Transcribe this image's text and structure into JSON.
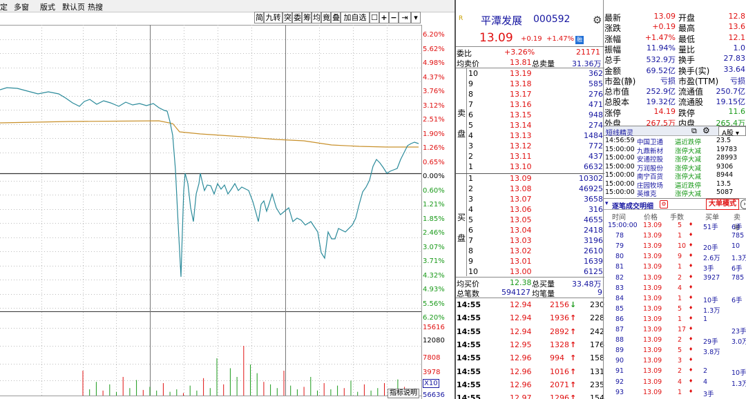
{
  "menu": [
    "定",
    "多窗",
    "版式",
    "默认页",
    "热搜"
  ],
  "toolbar": [
    "简",
    "九转",
    "突",
    "委",
    "筹",
    "均",
    "竟",
    "叠",
    "加自选",
    "☐",
    "+",
    "−",
    "⇥",
    "▾"
  ],
  "pct_labels": [
    {
      "t": "6.20%",
      "c": "red"
    },
    {
      "t": "5.62%",
      "c": "red"
    },
    {
      "t": "4.98%",
      "c": "red"
    },
    {
      "t": "4.37%",
      "c": "red"
    },
    {
      "t": "3.76%",
      "c": "red"
    },
    {
      "t": "3.12%",
      "c": "red"
    },
    {
      "t": "2.51%",
      "c": "red"
    },
    {
      "t": "1.90%",
      "c": "red"
    },
    {
      "t": "1.26%",
      "c": "red"
    },
    {
      "t": "0.65%",
      "c": "red"
    },
    {
      "t": "0.00%",
      "c": "blk"
    },
    {
      "t": "0.60%",
      "c": "grn"
    },
    {
      "t": "1.21%",
      "c": "grn"
    },
    {
      "t": "1.85%",
      "c": "grn"
    },
    {
      "t": "2.46%",
      "c": "grn"
    },
    {
      "t": "3.07%",
      "c": "grn"
    },
    {
      "t": "3.71%",
      "c": "grn"
    },
    {
      "t": "4.32%",
      "c": "grn"
    },
    {
      "t": "4.93%",
      "c": "grn"
    },
    {
      "t": "5.56%",
      "c": "grn"
    },
    {
      "t": "6.20%",
      "c": "grn"
    }
  ],
  "vol_labels": [
    "15616",
    "12080",
    "7808",
    "3978",
    "X10",
    "56636"
  ],
  "indicator_btn": "指标说明",
  "stock": {
    "mark": "R",
    "name": "平潭发展",
    "code": "000592",
    "price": "13.09",
    "chg": "+0.19",
    "pct": "+1.47%",
    "badge": "融"
  },
  "commission": {
    "l1": "委比",
    "v1": "+3.26%",
    "v2": "21171",
    "l2": "均卖价",
    "v3": "13.81",
    "l3": "总卖量",
    "v4": "31.36万"
  },
  "sell_label": "卖\n盘",
  "buy_label": "买\n盘",
  "sell": [
    [
      "10",
      "13.19",
      "362"
    ],
    [
      "9",
      "13.18",
      "585"
    ],
    [
      "8",
      "13.17",
      "276"
    ],
    [
      "7",
      "13.16",
      "471"
    ],
    [
      "6",
      "13.15",
      "948"
    ],
    [
      "5",
      "13.14",
      "274"
    ],
    [
      "4",
      "13.13",
      "1484"
    ],
    [
      "3",
      "13.12",
      "772"
    ],
    [
      "2",
      "13.11",
      "437"
    ],
    [
      "1",
      "13.10",
      "6632"
    ]
  ],
  "buy": [
    [
      "1",
      "13.09",
      "10302"
    ],
    [
      "2",
      "13.08",
      "46925"
    ],
    [
      "3",
      "13.07",
      "3658"
    ],
    [
      "4",
      "13.06",
      "316"
    ],
    [
      "5",
      "13.05",
      "4655"
    ],
    [
      "6",
      "13.04",
      "2418"
    ],
    [
      "7",
      "13.03",
      "3196"
    ],
    [
      "8",
      "13.02",
      "2610"
    ],
    [
      "9",
      "13.01",
      "1639"
    ],
    [
      "10",
      "13.00",
      "6125"
    ]
  ],
  "buy_summary": {
    "l1": "均买价",
    "v1": "12.38",
    "l2": "总买量",
    "v2": "33.48万",
    "l3": "总笔数",
    "v3": "594127",
    "l4": "均笔量",
    "v4": "9"
  },
  "ticks": [
    [
      "14:55",
      "12.94",
      "2156",
      "↓",
      "230"
    ],
    [
      "14:55",
      "12.94",
      "1936",
      "↑",
      "228"
    ],
    [
      "14:55",
      "12.94",
      "2892",
      "↑",
      "242"
    ],
    [
      "14:55",
      "12.95",
      "1328",
      "↑",
      "176"
    ],
    [
      "14:55",
      "12.96",
      "994",
      "↑",
      "158"
    ],
    [
      "14:55",
      "12.96",
      "1016",
      "↑",
      "131"
    ],
    [
      "14:55",
      "12.96",
      "2071",
      "↑",
      "235"
    ],
    [
      "14:55",
      "12.97",
      "1296",
      "↑",
      "154"
    ]
  ],
  "quote": [
    [
      "最新",
      "13.09",
      "开盘",
      "12.8"
    ],
    [
      "涨跌",
      "+0.19",
      "最高",
      "13.6"
    ],
    [
      "涨幅",
      "+1.47%",
      "最低",
      "12.1"
    ],
    [
      "振幅",
      "11.94%",
      "量比",
      "1.0"
    ],
    [
      "总手",
      "532.9万",
      "换手",
      "27.83"
    ],
    [
      "金额",
      "69.52亿",
      "换手(实)",
      "33.64"
    ],
    [
      "市盈(静)",
      "亏损",
      "市盈(TTM)",
      "亏损"
    ],
    [
      "总市值",
      "252.9亿",
      "流通值",
      "250.7亿"
    ],
    [
      "总股本",
      "19.32亿",
      "流通股",
      "19.15亿"
    ],
    [
      "涨停",
      "14.19",
      "跌停",
      "11.6"
    ],
    [
      "外盘",
      "267.5万",
      "内盘",
      "265.4万"
    ]
  ],
  "sprite": {
    "title": "短线精灵",
    "tab": "A股"
  },
  "sprite_rows": [
    [
      "14:56:59",
      "中国卫通",
      "逼近跌停",
      "23.5"
    ],
    [
      "15:00:00",
      "九鼎新材",
      "涨停大减",
      "19783"
    ],
    [
      "15:00:00",
      "安通控股",
      "涨停大减",
      "28993"
    ],
    [
      "15:00:00",
      "万润股份",
      "涨停大减",
      "9306"
    ],
    [
      "15:00:00",
      "南宁百货",
      "涨停大减",
      "8944"
    ],
    [
      "15:00:00",
      "庄园牧场",
      "逼近跌停",
      "13.5"
    ],
    [
      "15:00:00",
      "英维克",
      "涨停大减",
      "5087"
    ]
  ],
  "trade": {
    "title": "逐笔成交明细",
    "big": "大单模式",
    "cols": [
      "时间",
      "价格",
      "手数",
      "买单",
      "卖单"
    ]
  },
  "trade_rows": [
    [
      "15:00:00",
      "13.09",
      "5",
      "51手",
      "6手"
    ],
    [
      "78",
      "13.09",
      "1",
      "",
      "785"
    ],
    [
      "79",
      "13.09",
      "10",
      "20手",
      "10"
    ],
    [
      "80",
      "13.09",
      "9",
      "2.6万",
      "1.3万"
    ],
    [
      "81",
      "13.09",
      "1",
      "3手",
      "6手"
    ],
    [
      "82",
      "13.09",
      "2",
      "3927",
      "785"
    ],
    [
      "83",
      "13.09",
      "4",
      "",
      ""
    ],
    [
      "84",
      "13.09",
      "1",
      "10手",
      "6手"
    ],
    [
      "85",
      "13.09",
      "5",
      "1.3万",
      ""
    ],
    [
      "86",
      "13.09",
      "1",
      "1",
      ""
    ],
    [
      "87",
      "13.09",
      "17",
      "",
      "23手"
    ],
    [
      "88",
      "13.09",
      "2",
      "29手",
      "3.0万"
    ],
    [
      "89",
      "13.09",
      "5",
      "3.8万",
      ""
    ],
    [
      "90",
      "13.09",
      "3",
      "",
      ""
    ],
    [
      "91",
      "13.09",
      "2",
      "2",
      "10手"
    ],
    [
      "92",
      "13.09",
      "4",
      "4",
      "1.3万"
    ],
    [
      "93",
      "13.09",
      "1",
      "3手",
      ""
    ]
  ]
}
